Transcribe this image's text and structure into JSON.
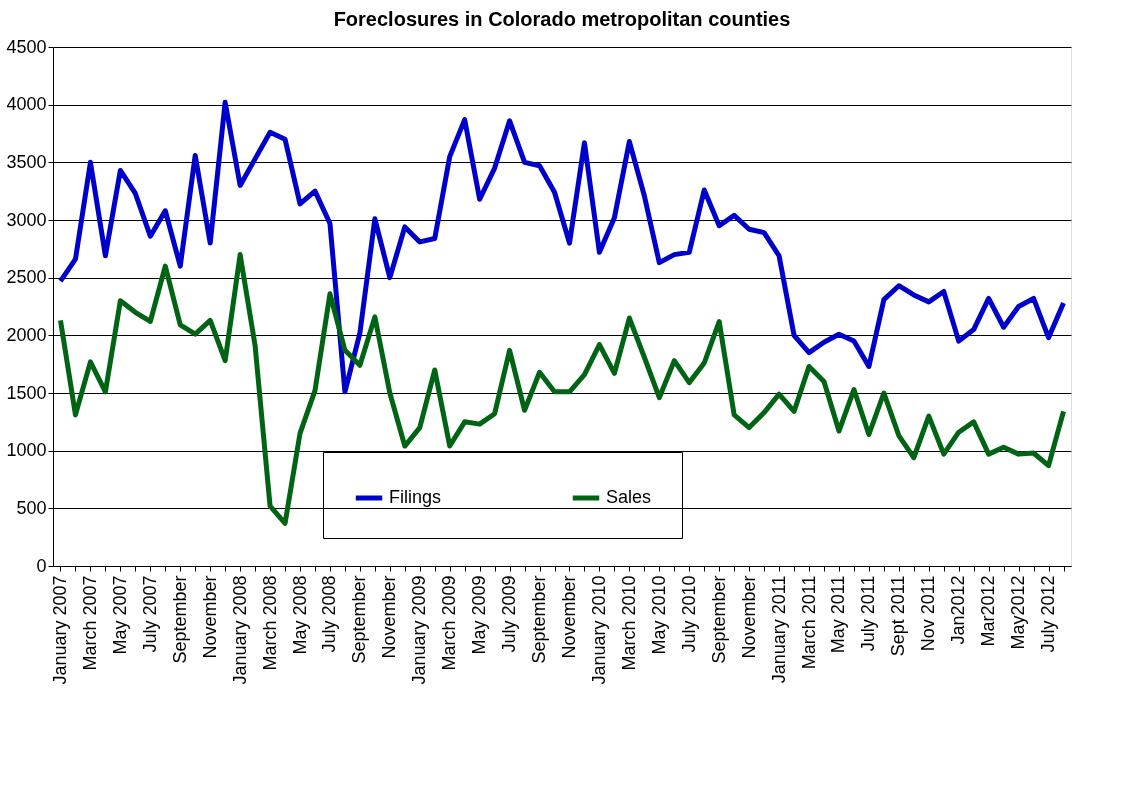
{
  "chart_data": {
    "type": "line",
    "title": "Foreclosures in Colorado metropolitan counties",
    "categories": [
      "January 2007",
      null,
      "March 2007",
      null,
      "May 2007",
      null,
      "July 2007",
      null,
      "September",
      null,
      "November",
      null,
      "January 2008",
      null,
      "March 2008",
      null,
      "May 2008",
      null,
      "July 2008",
      null,
      "September",
      null,
      "November",
      null,
      "January 2009",
      null,
      "March 2009",
      null,
      "May 2009",
      null,
      "July 2009",
      null,
      "September",
      null,
      "November",
      null,
      "January 2010",
      null,
      "March 2010",
      null,
      "May 2010",
      null,
      "July 2010",
      null,
      "September",
      null,
      "November",
      null,
      "January 2011",
      null,
      "March 2011",
      null,
      "May 2011",
      null,
      "July 2011",
      null,
      "Sept 2011",
      null,
      "Nov 2011",
      null,
      "Jan2012",
      null,
      "Mar2012",
      null,
      "May2012",
      null,
      "July 2012",
      null
    ],
    "series": [
      {
        "name": "Filings",
        "color": "#0000cc",
        "values": [
          2470,
          2660,
          3500,
          2690,
          3430,
          3230,
          2860,
          3080,
          2600,
          3560,
          2800,
          4020,
          3300,
          3530,
          3760,
          3700,
          3140,
          3250,
          2970,
          1510,
          2020,
          3010,
          2500,
          2940,
          2810,
          2840,
          3550,
          3870,
          3180,
          3450,
          3860,
          3500,
          3470,
          3240,
          2800,
          3670,
          2720,
          3020,
          3680,
          3210,
          2630,
          2700,
          2720,
          3260,
          2950,
          3040,
          2920,
          2890,
          2690,
          2000,
          1850,
          1940,
          2010,
          1950,
          1730,
          2310,
          2430,
          2350,
          2290,
          2380,
          1950,
          2050,
          2320,
          2070,
          2250,
          2320,
          1980,
          2280
        ]
      },
      {
        "name": "Sales",
        "color": "#006414",
        "values": [
          2130,
          1310,
          1770,
          1510,
          2300,
          2200,
          2120,
          2600,
          2090,
          2010,
          2130,
          1780,
          2700,
          1910,
          520,
          370,
          1150,
          1520,
          2360,
          1870,
          1740,
          2160,
          1500,
          1040,
          1200,
          1700,
          1040,
          1250,
          1230,
          1320,
          1870,
          1350,
          1680,
          1510,
          1510,
          1660,
          1920,
          1670,
          2150,
          1810,
          1460,
          1780,
          1590,
          1760,
          2120,
          1310,
          1200,
          1330,
          1490,
          1340,
          1730,
          1600,
          1170,
          1530,
          1140,
          1500,
          1130,
          940,
          1300,
          970,
          1160,
          1250,
          970,
          1030,
          970,
          980,
          870,
          1340
        ]
      }
    ],
    "ylim": [
      0,
      4500
    ],
    "yticks": [
      0,
      500,
      1000,
      1500,
      2000,
      2500,
      3000,
      3500,
      4000,
      4500
    ],
    "grid": "y",
    "legend": "bottom",
    "marker": "none",
    "line_style": "solid"
  }
}
